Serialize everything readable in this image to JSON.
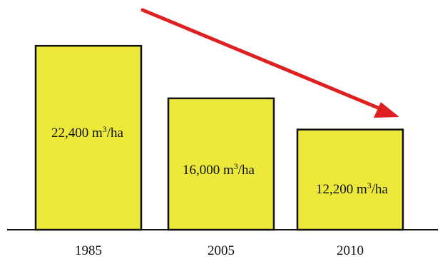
{
  "chart_data": {
    "type": "bar",
    "title": "",
    "xlabel": "",
    "ylabel": "",
    "categories": [
      "1985",
      "2005",
      "2010"
    ],
    "values": [
      22400,
      16000,
      12200
    ],
    "data_labels": [
      {
        "number": "22,400",
        "unit": "m",
        "exp": "3",
        "suffix": "/ha"
      },
      {
        "number": "16,000",
        "unit": "m",
        "exp": "3",
        "suffix": "/ha"
      },
      {
        "number": "12,200",
        "unit": "m",
        "exp": "3",
        "suffix": "/ha"
      }
    ],
    "ylim": [
      0,
      24500
    ],
    "grid": false,
    "legend": "none",
    "trend_arrow": "decreasing",
    "colors": {
      "bar_fill": "#ece93a",
      "bar_stroke": "#111111",
      "arrow": "#e02020",
      "axis": "#111111"
    }
  }
}
